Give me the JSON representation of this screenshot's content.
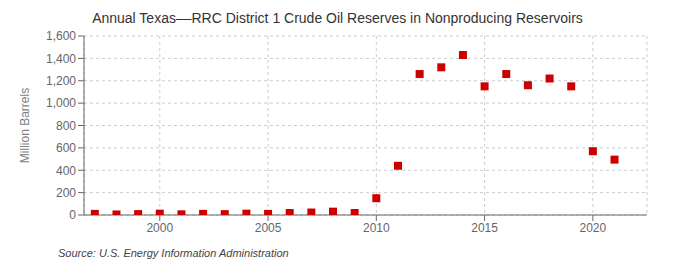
{
  "chart_data": {
    "type": "scatter",
    "title": "Annual Texas––RRC District 1 Crude Oil Reserves in Nonproducing Reservoirs",
    "ylabel": "Million Barrels",
    "annotations": [
      "Source: U.S. Energy Information Administration"
    ],
    "x": [
      1997,
      1998,
      1999,
      2000,
      2001,
      2002,
      2003,
      2004,
      2005,
      2006,
      2007,
      2008,
      2009,
      2010,
      2011,
      2012,
      2013,
      2014,
      2015,
      2016,
      2017,
      2018,
      2019,
      2020,
      2021
    ],
    "values": [
      10,
      5,
      8,
      12,
      6,
      10,
      8,
      12,
      10,
      18,
      22,
      30,
      18,
      150,
      440,
      1260,
      1320,
      1430,
      1150,
      1260,
      1160,
      1220,
      1150,
      570,
      495
    ],
    "color": "#cc0000",
    "marker": "square",
    "xlim": [
      1996.5,
      2022.5
    ],
    "xticks": [
      2000,
      2005,
      2010,
      2015,
      2020
    ],
    "ylim": [
      0,
      1600
    ],
    "yticks": [
      0,
      200,
      400,
      600,
      800,
      {
        "value": 1000,
        "label": "1,000"
      },
      {
        "value": 1200,
        "label": "1,200"
      },
      {
        "value": 1400,
        "label": "1,400"
      },
      {
        "value": 1600,
        "label": "1,600"
      }
    ],
    "grid": true
  }
}
